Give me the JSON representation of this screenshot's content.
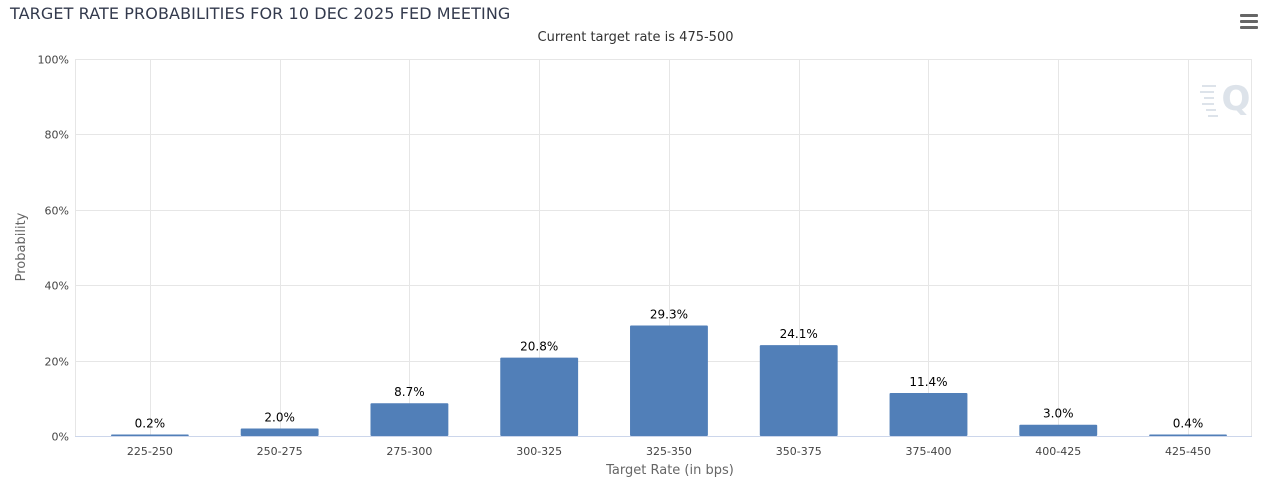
{
  "chart": {
    "title": "TARGET RATE PROBABILITIES FOR 10 DEC 2025 FED MEETING",
    "subtitle": "Current target rate is 475-500",
    "menu_icon": "hamburger-menu-icon",
    "watermark_icon": "q-logo-icon"
  },
  "chart_data": {
    "type": "bar",
    "title": "TARGET RATE PROBABILITIES FOR 10 DEC 2025 FED MEETING",
    "subtitle": "Current target rate is 475-500",
    "xlabel": "Target Rate (in bps)",
    "ylabel": "Probability",
    "categories": [
      "225-250",
      "250-275",
      "275-300",
      "300-325",
      "325-350",
      "350-375",
      "375-400",
      "400-425",
      "425-450"
    ],
    "values": [
      0.2,
      2.0,
      8.7,
      20.8,
      29.3,
      24.1,
      11.4,
      3.0,
      0.4
    ],
    "data_labels": [
      "0.2%",
      "2.0%",
      "8.7%",
      "20.8%",
      "29.3%",
      "24.1%",
      "11.4%",
      "3.0%",
      "0.4%"
    ],
    "ylim": [
      0,
      100
    ],
    "yticks": [
      0,
      20,
      40,
      60,
      80,
      100
    ],
    "ytick_labels": [
      "0%",
      "20%",
      "40%",
      "60%",
      "80%",
      "100%"
    ],
    "grid": true,
    "legend": "none",
    "colors": {
      "bar": "#517fb8",
      "grid": "#e6e6e6",
      "axis": "#ccd6eb"
    }
  }
}
